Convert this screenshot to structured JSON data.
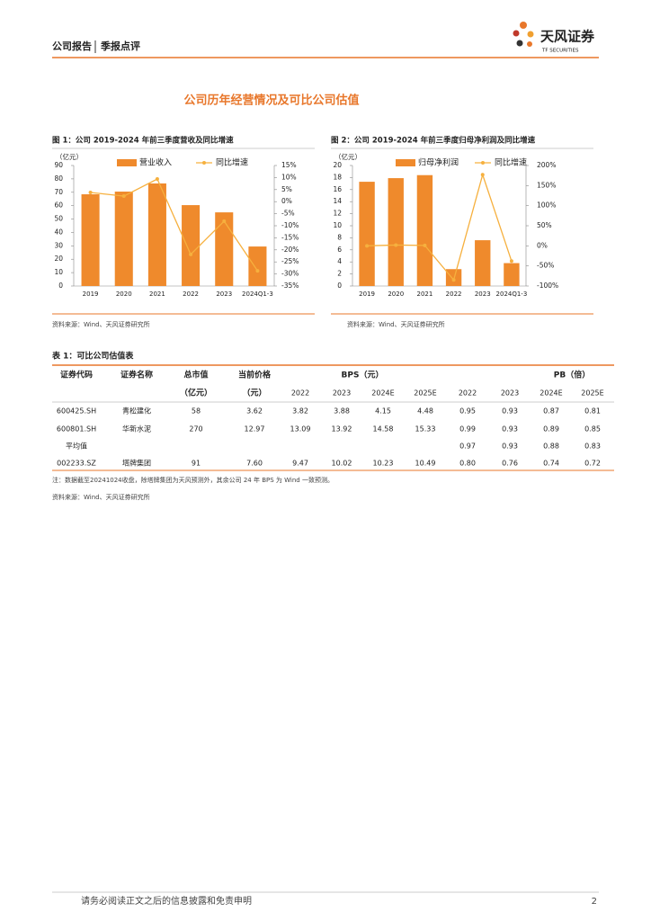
{
  "header": {
    "report_type": "公司报告",
    "report_subtype": "季报点评",
    "brand": "天风证券",
    "brand_en": "TF SECURITIES"
  },
  "section_title": "公司历年经营情况及可比公司估值",
  "chart_data": [
    {
      "type": "bar_line",
      "title": "图 1：公司 2019-2024 年前三季度营收及同比增速",
      "ylabel": "（亿元）",
      "categories": [
        "2019",
        "2020",
        "2021",
        "2022",
        "2023",
        "2024Q1-3"
      ],
      "series": [
        {
          "name": "营业收入",
          "type": "bar",
          "color": "#ef8a2c",
          "values": [
            68.5,
            70.5,
            76.6,
            60.4,
            55,
            29.5
          ]
        },
        {
          "name": "同比增速",
          "type": "line",
          "axis": "y2",
          "color": "#f6b03e",
          "values": [
            3.8,
            2.3,
            9.4,
            -21.9,
            -8.1,
            -28.7
          ]
        }
      ],
      "ylim": [
        0,
        90
      ],
      "yticks": [
        0,
        10,
        20,
        30,
        40,
        50,
        60,
        70,
        80,
        90
      ],
      "y2lim": [
        -35,
        15
      ],
      "y2ticks": [
        {
          "value": 15,
          "label": "15%"
        },
        {
          "value": 10,
          "label": "10%"
        },
        {
          "value": 5,
          "label": "5%"
        },
        {
          "value": 0,
          "label": "0%"
        },
        {
          "value": -5,
          "label": "-5%"
        },
        {
          "value": -10,
          "label": "-10%"
        },
        {
          "value": -15,
          "label": "-15%"
        },
        {
          "value": -20,
          "label": "-20%"
        },
        {
          "value": -25,
          "label": "-25%"
        },
        {
          "value": -30,
          "label": "-30%"
        },
        {
          "value": -35,
          "label": "-35%"
        }
      ],
      "source": "资料来源：Wind、天风证券研究所"
    },
    {
      "type": "bar_line",
      "title": "图 2：公司 2019-2024 年前三季度归母净利润及同比增速",
      "ylabel": "（亿元）",
      "categories": [
        "2019",
        "2020",
        "2021",
        "2022",
        "2023",
        "2024Q1-3"
      ],
      "series": [
        {
          "name": "归母净利润",
          "type": "bar",
          "color": "#ef8a2c",
          "values": [
            17.3,
            17.9,
            18.4,
            2.8,
            7.6,
            3.8
          ]
        },
        {
          "name": "同比增速",
          "type": "line",
          "axis": "y2",
          "color": "#f6b03e",
          "values": [
            0,
            2,
            1,
            -85,
            177,
            -38
          ]
        }
      ],
      "ylim": [
        0,
        20
      ],
      "yticks": [
        0,
        2,
        4,
        6,
        8,
        10,
        12,
        14,
        16,
        18,
        20
      ],
      "y2lim": [
        -100,
        200
      ],
      "y2ticks": [
        {
          "value": 200,
          "label": "200%"
        },
        {
          "value": 150,
          "label": "150%"
        },
        {
          "value": 100,
          "label": "100%"
        },
        {
          "value": 50,
          "label": "50%"
        },
        {
          "value": 0,
          "label": "0%"
        },
        {
          "value": -50,
          "label": "-50%"
        },
        {
          "value": -100,
          "label": "-100%"
        }
      ],
      "source": "资料来源：Wind、天风证券研究所"
    }
  ],
  "table": {
    "title": "表 1：可比公司估值表",
    "headers": [
      "证券代码",
      "证券名称",
      "总市值",
      "当前价格",
      "BPS（元）",
      "PB（倍）"
    ],
    "units": [
      "（亿元）",
      "（元）"
    ],
    "bps_years": [
      "2022",
      "2023",
      "2024E",
      "2025E"
    ],
    "pb_years": [
      "2022",
      "2023",
      "2024E",
      "2025E"
    ],
    "rows": [
      [
        "600425.SH",
        "青松建化",
        "58",
        "3.62",
        "3.82",
        "3.88",
        "4.15",
        "4.48",
        "0.95",
        "0.93",
        "0.87",
        "0.81"
      ],
      [
        "600801.SH",
        "华新水泥",
        "270",
        "12.97",
        "13.09",
        "13.92",
        "14.58",
        "15.33",
        "0.99",
        "0.93",
        "0.89",
        "0.85"
      ],
      [
        "平均值",
        null,
        null,
        null,
        null,
        null,
        null,
        null,
        "0.97",
        "0.93",
        "0.88",
        "0.83"
      ],
      [
        "002233.SZ",
        "塔牌集团",
        "91",
        "7.60",
        "9.47",
        "10.02",
        "10.23",
        "10.49",
        "0.80",
        "0.76",
        "0.74",
        "0.72"
      ]
    ],
    "note": "注：数据截至20241024收盘，除塔牌集团为天风预测外，其余公司 24 年 BPS 为 Wind 一致预测。",
    "source": "资料来源：Wind、天风证券研究所"
  },
  "footer": {
    "disclaimer": "请务必阅读正文之后的信息披露和免责申明",
    "page": "2"
  }
}
